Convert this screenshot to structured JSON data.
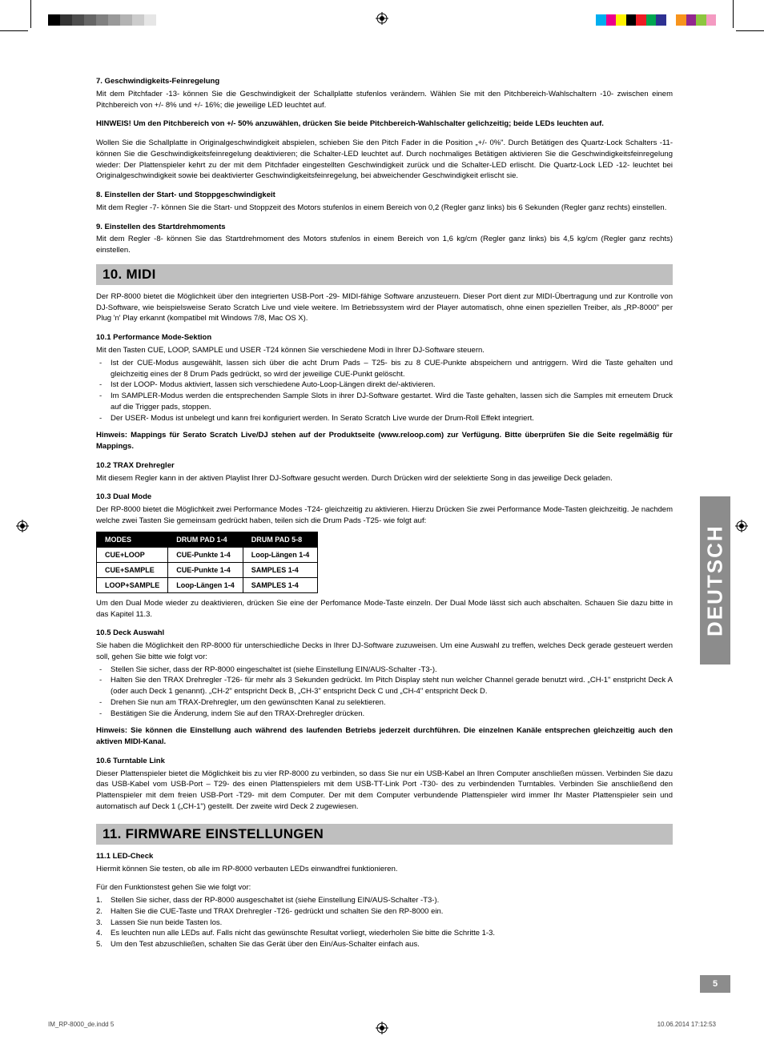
{
  "color_bars_left": [
    "#000000",
    "#333333",
    "#4d4d4d",
    "#666666",
    "#808080",
    "#999999",
    "#b3b3b3",
    "#cccccc",
    "#e6e6e6",
    "#ffffff"
  ],
  "color_bars_right": [
    "#00aeef",
    "#ec008c",
    "#fff200",
    "#000000",
    "#ed1c24",
    "#00a651",
    "#2e3192",
    "#ffffff",
    "#f7941d",
    "#92278f",
    "#8dc63f",
    "#f49ac1"
  ],
  "sec7": {
    "title": "7. Geschwindigkeits-Feinregelung",
    "p1": "Mit dem Pitchfader -13- können Sie die Geschwindigkeit der Schallplatte stufenlos verändern. Wählen Sie mit den Pitchbereich-Wahlschaltern -10- zwischen einem Pitchbereich von +/- 8% und +/- 16%; die jeweilige LED leuchtet auf.",
    "note": "HINWEIS! Um den Pitchbereich von +/- 50% anzuwählen, drücken Sie beide Pitchbereich-Wahlschalter gelichzeitig; beide LEDs leuchten auf.",
    "p2": "Wollen Sie die Schallplatte in Originalgeschwindigkeit abspielen, schieben Sie den Pitch Fader in die Position „+/- 0%\". Durch Betätigen des Quartz-Lock Schalters -11- können Sie die Geschwindigkeitsfeinregelung deaktivieren; die Schalter-LED leuchtet auf. Durch nochmaliges Betätigen aktivieren Sie die Geschwindigkeitsfeinregelung wieder: Der Plattenspieler kehrt zu der mit dem Pitchfader eingestellten Geschwindigkeit zurück und die Schalter-LED erlischt. Die Quartz-Lock LED -12- leuchtet bei Originalgeschwindigkeit sowie bei deaktivierter Geschwindigkeitsfeinregelung, bei abweichender Geschwindigkeit erlischt sie."
  },
  "sec8": {
    "title": "8. Einstellen der Start- und Stoppgeschwindigkeit",
    "p1": "Mit dem Regler -7- können Sie die Start- und Stoppzeit des Motors stufenlos in einem Bereich von 0,2 (Regler ganz links) bis 6 Sekunden (Regler ganz rechts) einstellen."
  },
  "sec9": {
    "title": "9. Einstellen des Startdrehmoments",
    "p1": "Mit dem Regler -8- können Sie das Startdrehmoment des Motors stufenlos in einem Bereich von 1,6 kg/cm (Regler ganz links) bis 4,5 kg/cm (Regler ganz rechts) einstellen."
  },
  "sec10": {
    "heading": "10. MIDI",
    "intro": "Der RP-8000 bietet die Möglichkeit über den integrierten USB-Port -29- MIDI-fähige Software anzusteuern. Dieser Port dient zur MIDI-Übertragung und zur Kontrolle von DJ-Software, wie beispielsweise Serato Scratch Live und viele weitere. Im Betriebssystem wird der Player automatisch, ohne einen speziellen Treiber, als „RP-8000\" per Plug 'n' Play erkannt (kompatibel mit Windows 7/8, Mac OS X).",
    "s101_title": "10.1 Performance Mode-Sektion",
    "s101_p1": "Mit den Tasten CUE, LOOP, SAMPLE und USER -T24 können Sie verschiedene Modi in Ihrer DJ-Software steuern.",
    "s101_items": [
      "Ist der CUE-Modus ausgewählt, lassen sich über die acht Drum Pads – T25- bis zu 8 CUE-Punkte abspeichern und antriggern. Wird die Taste gehalten und gleichzeitig eines der 8 Drum Pads gedrückt, so wird der jeweilige CUE-Punkt gelöscht.",
      "Ist der LOOP- Modus aktiviert, lassen sich verschiedene Auto-Loop-Längen direkt de/-aktivieren.",
      "Im SAMPLER-Modus werden die entsprechenden Sample Slots in ihrer DJ-Software gestartet. Wird die Taste gehalten, lassen sich die Samples mit erneutem Druck auf die Trigger pads, stoppen.",
      "Der USER- Modus ist unbelegt und kann frei konfiguriert werden. In Serato Scratch Live wurde der Drum-Roll Effekt integriert."
    ],
    "s101_note": "Hinweis: Mappings für Serato Scratch Live/DJ stehen auf der Produktseite (www.reloop.com) zur Verfügung. Bitte überprüfen Sie die Seite regelmäßig für Mappings.",
    "s102_title": "10.2 TRAX Drehregler",
    "s102_p1": "Mit diesem Regler kann in der aktiven Playlist Ihrer DJ-Software gesucht werden. Durch Drücken wird der selektierte Song in das jeweilige Deck geladen.",
    "s103_title": "10.3 Dual Mode",
    "s103_p1": "Der RP-8000 bietet die Möglichkeit zwei Performance Modes -T24- gleichzeitig zu aktivieren. Hierzu Drücken Sie zwei Performance Mode-Tasten gleichzeitig. Je nachdem welche zwei Tasten Sie gemeinsam gedrückt haben, teilen sich die Drum Pads -T25- wie folgt auf:",
    "table": {
      "headers": [
        "MODES",
        "DRUM PAD 1-4",
        "DRUM PAD 5-8"
      ],
      "rows": [
        [
          "CUE+LOOP",
          "CUE-Punkte 1-4",
          "Loop-Längen 1-4"
        ],
        [
          "CUE+SAMPLE",
          "CUE-Punkte 1-4",
          "SAMPLES 1-4"
        ],
        [
          "LOOP+SAMPLE",
          "Loop-Längen 1-4",
          "SAMPLES 1-4"
        ]
      ]
    },
    "s103_p2": "Um den Dual Mode wieder zu deaktivieren, drücken Sie eine der Perfomance Mode-Taste einzeln. Der Dual Mode lässt sich auch abschalten. Schauen Sie dazu bitte in das Kapitel 11.3.",
    "s105_title": "10.5 Deck Auswahl",
    "s105_p1": "Sie haben die Möglichkeit den RP-8000 für unterschiedliche Decks in Ihrer DJ-Software zuzuweisen. Um eine Auswahl zu treffen, welches Deck gerade gesteuert werden soll, gehen Sie bitte wie folgt vor:",
    "s105_items": [
      "Stellen Sie sicher, dass der RP-8000 eingeschaltet ist (siehe Einstellung EIN/AUS-Schalter -T3-).",
      "Halten Sie den TRAX Drehregler -T26- für mehr als 3 Sekunden gedrückt. Im Pitch Display steht nun welcher Channel gerade benutzt wird. „CH-1\" enstpricht Deck A (oder auch Deck 1 genannt). „CH-2\" entspricht Deck B, „CH-3\" entspricht Deck C und „CH-4\" entspricht Deck D.",
      "Drehen Sie nun am TRAX-Drehregler, um den gewünschten Kanal zu selektieren.",
      "Bestätigen Sie die Änderung, indem Sie auf den TRAX-Drehregler drücken."
    ],
    "s105_note": "Hinweis: Sie können die Einstellung auch während des laufenden Betriebs jederzeit durchführen. Die einzelnen Kanäle entsprechen gleichzeitig auch den aktiven MIDI-Kanal.",
    "s106_title": "10.6 Turntable Link",
    "s106_p1": "Dieser Plattenspieler bietet die Möglichkeit bis zu vier RP-8000 zu verbinden, so dass Sie nur ein USB-Kabel an Ihren Computer anschließen müssen. Verbinden Sie dazu das USB-Kabel vom USB-Port – T29- des einen Plattenspielers mit dem USB-TT-Link Port -T30- des zu verbindenden Turntables. Verbinden Sie anschließend den Plattenspieler mit dem freien USB-Port -T29- mit dem Computer. Der mit dem Computer verbundende Plattenspieler wird immer Ihr Master Plattenspieler sein und automatisch auf Deck 1 („CH-1\") gestellt. Der zweite wird Deck 2 zugewiesen."
  },
  "sec11": {
    "heading": "11. FIRMWARE EINSTELLUNGEN",
    "s111_title": "11.1 LED-Check",
    "s111_p1": "Hiermit können Sie testen, ob alle im RP-8000 verbauten LEDs einwandfrei funktionieren.",
    "s111_p2": "Für den Funktionstest gehen Sie wie folgt vor:",
    "s111_items": [
      "Stellen Sie sicher, dass der RP-8000 ausgeschaltet ist (siehe Einstellung EIN/AUS-Schalter -T3-).",
      "Halten Sie die CUE-Taste und TRAX Drehregler -T26- gedrückt und schalten Sie den RP-8000 ein.",
      "Lassen Sie nun beide Tasten los.",
      "Es leuchten nun alle LEDs auf. Falls nicht das gewünschte Resultat vorliegt, wiederholen Sie bitte die Schritte 1-3.",
      "Um den Test abzuschließen, schalten Sie das Gerät über den Ein/Aus-Schalter einfach aus."
    ]
  },
  "side_tab": "DEUTSCH",
  "page_number": "5",
  "footer_left": "IM_RP-8000_de.indd   5",
  "footer_right": "10.06.2014   17:12:53"
}
